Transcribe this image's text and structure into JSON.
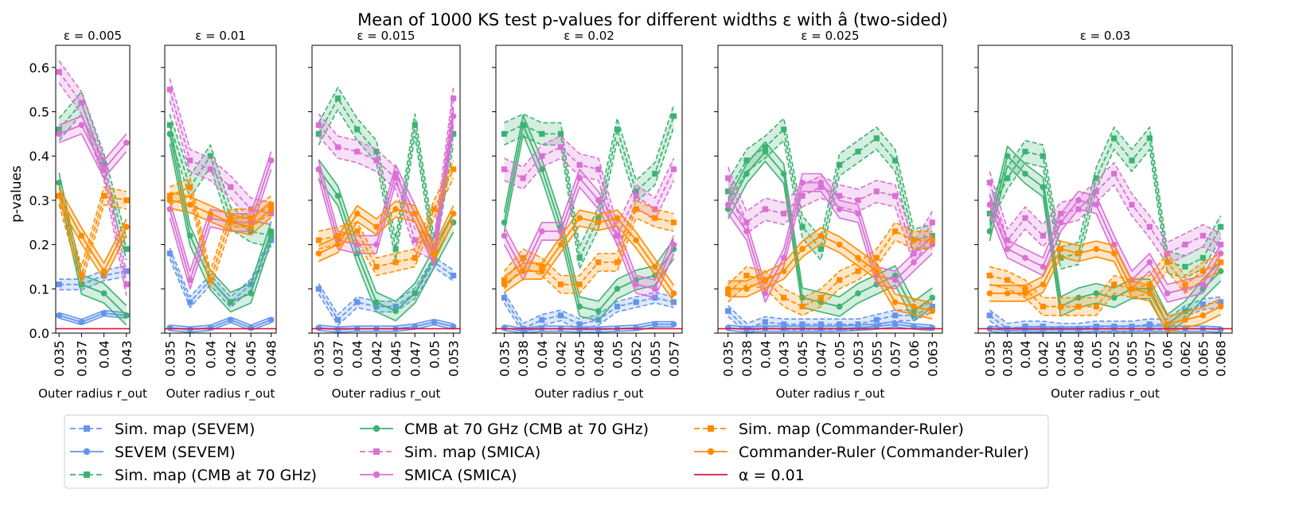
{
  "figure": {
    "title": "Mean of 1000 KS test p-values for different widths ε with â (two-sided)",
    "ylabel": "p-values",
    "xlabel": "Outer radius r_out",
    "yticks": [
      "0.0",
      "0.1",
      "0.2",
      "0.3",
      "0.4",
      "0.5",
      "0.6"
    ]
  },
  "colors": {
    "sevem": "#6495ED",
    "cmb70": "#3CB371",
    "smica": "#DA70D6",
    "commander": "#FF8C00",
    "alpha": "#DC143C"
  },
  "legend": [
    {
      "label": "Sim. map (SEVEM)",
      "color": "#6495ED",
      "style": "dashed",
      "marker": "square"
    },
    {
      "label": "SEVEM (SEVEM)",
      "color": "#6495ED",
      "style": "solid",
      "marker": "circle"
    },
    {
      "label": "Sim. map (CMB at 70 GHz)",
      "color": "#3CB371",
      "style": "dashed",
      "marker": "square"
    },
    {
      "label": "CMB at 70 GHz (CMB at 70 GHz)",
      "color": "#3CB371",
      "style": "solid",
      "marker": "circle"
    },
    {
      "label": "Sim. map (SMICA)",
      "color": "#DA70D6",
      "style": "dashed",
      "marker": "square"
    },
    {
      "label": "SMICA (SMICA)",
      "color": "#DA70D6",
      "style": "solid",
      "marker": "circle"
    },
    {
      "label": "Sim. map (Commander-Ruler)",
      "color": "#FF8C00",
      "style": "dashed",
      "marker": "square"
    },
    {
      "label": "Commander-Ruler (Commander-Ruler)",
      "color": "#FF8C00",
      "style": "solid",
      "marker": "circle"
    },
    {
      "label": "α = 0.01",
      "color": "#DC143C",
      "style": "solid",
      "marker": "none"
    }
  ],
  "chart_data": [
    {
      "type": "line",
      "title": "ε = 0.005",
      "ylim": [
        0,
        0.65
      ],
      "alpha": 0.01,
      "categories": [
        "0.035",
        "0.037",
        "0.04",
        "0.043"
      ],
      "series": [
        {
          "name": "Sim. map (SEVEM)",
          "values": [
            0.11,
            0.11,
            0.13,
            0.14
          ]
        },
        {
          "name": "SEVEM (SEVEM)",
          "values": [
            0.04,
            0.025,
            0.045,
            0.04
          ]
        },
        {
          "name": "Sim. map (CMB at 70 GHz)",
          "values": [
            0.46,
            0.52,
            0.38,
            0.19
          ]
        },
        {
          "name": "CMB at 70 GHz (CMB at 70 GHz)",
          "values": [
            0.34,
            0.11,
            0.09,
            0.04
          ]
        },
        {
          "name": "Sim. map (SMICA)",
          "values": [
            0.59,
            0.52,
            0.37,
            0.11
          ]
        },
        {
          "name": "SMICA (SMICA)",
          "values": [
            0.45,
            0.47,
            0.37,
            0.43
          ]
        },
        {
          "name": "Sim. map (Commander-Ruler)",
          "values": [
            0.31,
            0.13,
            0.31,
            0.3
          ]
        },
        {
          "name": "Commander-Ruler (Commander-Ruler)",
          "values": [
            0.31,
            0.22,
            0.14,
            0.24
          ]
        }
      ]
    },
    {
      "type": "line",
      "title": "ε = 0.01",
      "ylim": [
        0,
        0.65
      ],
      "alpha": 0.01,
      "categories": [
        "0.035",
        "0.037",
        "0.04",
        "0.042",
        "0.045",
        "0.048"
      ],
      "series": [
        {
          "name": "Sim. map (SEVEM)",
          "values": [
            0.18,
            0.07,
            0.12,
            0.07,
            0.11,
            0.21
          ]
        },
        {
          "name": "SEVEM (SEVEM)",
          "values": [
            0.012,
            0.008,
            0.012,
            0.03,
            0.012,
            0.03
          ]
        },
        {
          "name": "Sim. map (CMB at 70 GHz)",
          "values": [
            0.47,
            0.33,
            0.4,
            0.26,
            0.23,
            0.22
          ]
        },
        {
          "name": "CMB at 70 GHz (CMB at 70 GHz)",
          "values": [
            0.45,
            0.22,
            0.12,
            0.07,
            0.09,
            0.23
          ]
        },
        {
          "name": "Sim. map (SMICA)",
          "values": [
            0.55,
            0.39,
            0.37,
            0.33,
            0.28,
            0.27
          ]
        },
        {
          "name": "SMICA (SMICA)",
          "values": [
            0.28,
            0.12,
            0.26,
            0.25,
            0.25,
            0.39
          ]
        },
        {
          "name": "Sim. map (Commander-Ruler)",
          "values": [
            0.31,
            0.33,
            0.12,
            0.26,
            0.26,
            0.29
          ]
        },
        {
          "name": "Commander-Ruler (Commander-Ruler)",
          "values": [
            0.3,
            0.29,
            0.27,
            0.25,
            0.24,
            0.28
          ]
        }
      ]
    },
    {
      "type": "line",
      "title": "ε = 0.015",
      "ylim": [
        0,
        0.65
      ],
      "alpha": 0.01,
      "categories": [
        "0.035",
        "0.037",
        "0.04",
        "0.042",
        "0.045",
        "0.047",
        "0.05",
        "0.053"
      ],
      "series": [
        {
          "name": "Sim. map (SEVEM)",
          "values": [
            0.1,
            0.03,
            0.07,
            0.06,
            0.06,
            0.09,
            0.16,
            0.13
          ]
        },
        {
          "name": "SEVEM (SEVEM)",
          "values": [
            0.012,
            0.008,
            0.01,
            0.01,
            0.01,
            0.015,
            0.025,
            0.015
          ]
        },
        {
          "name": "Sim. map (CMB at 70 GHz)",
          "values": [
            0.45,
            0.53,
            0.46,
            0.41,
            0.19,
            0.47,
            0.19,
            0.45
          ]
        },
        {
          "name": "CMB at 70 GHz (CMB at 70 GHz)",
          "values": [
            0.37,
            0.31,
            0.18,
            0.07,
            0.05,
            0.09,
            0.17,
            0.25
          ]
        },
        {
          "name": "Sim. map (SMICA)",
          "values": [
            0.47,
            0.42,
            0.41,
            0.39,
            0.35,
            0.21,
            0.19,
            0.53
          ]
        },
        {
          "name": "SMICA (SMICA)",
          "values": [
            0.37,
            0.21,
            0.2,
            0.2,
            0.36,
            0.27,
            0.17,
            0.49
          ]
        },
        {
          "name": "Sim. map (Commander-Ruler)",
          "values": [
            0.21,
            0.22,
            0.23,
            0.15,
            0.16,
            0.17,
            0.28,
            0.37
          ]
        },
        {
          "name": "Commander-Ruler (Commander-Ruler)",
          "values": [
            0.18,
            0.2,
            0.27,
            0.24,
            0.28,
            0.27,
            0.18,
            0.27
          ]
        }
      ]
    },
    {
      "type": "line",
      "title": "ε = 0.02",
      "ylim": [
        0,
        0.65
      ],
      "alpha": 0.01,
      "categories": [
        "0.035",
        "0.038",
        "0.04",
        "0.042",
        "0.045",
        "0.048",
        "0.05",
        "0.052",
        "0.055",
        "0.057"
      ],
      "series": [
        {
          "name": "Sim. map (SEVEM)",
          "values": [
            0.08,
            0.01,
            0.03,
            0.04,
            0.02,
            0.03,
            0.06,
            0.07,
            0.08,
            0.07
          ]
        },
        {
          "name": "SEVEM (SEVEM)",
          "values": [
            0.012,
            0.005,
            0.01,
            0.01,
            0.008,
            0.008,
            0.01,
            0.012,
            0.02,
            0.02
          ]
        },
        {
          "name": "Sim. map (CMB at 70 GHz)",
          "values": [
            0.45,
            0.47,
            0.45,
            0.45,
            0.17,
            0.26,
            0.46,
            0.32,
            0.36,
            0.49
          ]
        },
        {
          "name": "CMB at 70 GHz (CMB at 70 GHz)",
          "values": [
            0.25,
            0.47,
            0.37,
            0.24,
            0.06,
            0.05,
            0.1,
            0.12,
            0.13,
            0.19
          ]
        },
        {
          "name": "Sim. map (SMICA)",
          "values": [
            0.37,
            0.35,
            0.4,
            0.42,
            0.38,
            0.37,
            0.22,
            0.31,
            0.28,
            0.37
          ]
        },
        {
          "name": "SMICA (SMICA)",
          "values": [
            0.22,
            0.14,
            0.23,
            0.23,
            0.35,
            0.3,
            0.22,
            0.11,
            0.1,
            0.2
          ]
        },
        {
          "name": "Sim. map (Commander-Ruler)",
          "values": [
            0.12,
            0.17,
            0.15,
            0.11,
            0.11,
            0.16,
            0.16,
            0.28,
            0.26,
            0.25
          ]
        },
        {
          "name": "Commander-Ruler (Commander-Ruler)",
          "values": [
            0.11,
            0.14,
            0.14,
            0.2,
            0.26,
            0.25,
            0.26,
            0.21,
            0.15,
            0.09
          ]
        }
      ]
    },
    {
      "type": "line",
      "title": "ε = 0.025",
      "ylim": [
        0,
        0.65
      ],
      "alpha": 0.01,
      "categories": [
        "0.035",
        "0.038",
        "0.04",
        "0.043",
        "0.045",
        "0.047",
        "0.05",
        "0.053",
        "0.055",
        "0.057",
        "0.06",
        "0.063"
      ],
      "series": [
        {
          "name": "Sim. map (SEVEM)",
          "values": [
            0.05,
            0.01,
            0.025,
            0.02,
            0.02,
            0.02,
            0.02,
            0.02,
            0.03,
            0.04,
            0.04,
            0.06
          ]
        },
        {
          "name": "SEVEM (SEVEM)",
          "values": [
            0.012,
            0.008,
            0.01,
            0.01,
            0.01,
            0.01,
            0.01,
            0.012,
            0.015,
            0.02,
            0.015,
            0.012
          ]
        },
        {
          "name": "Sim. map (CMB at 70 GHz)",
          "values": [
            0.32,
            0.39,
            0.42,
            0.46,
            0.24,
            0.19,
            0.38,
            0.41,
            0.44,
            0.39,
            0.21,
            0.22
          ]
        },
        {
          "name": "CMB at 70 GHz (CMB at 70 GHz)",
          "values": [
            0.28,
            0.36,
            0.41,
            0.36,
            0.08,
            0.07,
            0.06,
            0.09,
            0.11,
            0.13,
            0.05,
            0.08
          ]
        },
        {
          "name": "Sim. map (SMICA)",
          "values": [
            0.35,
            0.25,
            0.28,
            0.27,
            0.31,
            0.33,
            0.31,
            0.3,
            0.32,
            0.31,
            0.18,
            0.25
          ]
        },
        {
          "name": "SMICA (SMICA)",
          "values": [
            0.29,
            0.23,
            0.09,
            0.17,
            0.34,
            0.34,
            0.28,
            0.27,
            0.13,
            0.12,
            0.16,
            0.2
          ]
        },
        {
          "name": "Sim. map (Commander-Ruler)",
          "values": [
            0.09,
            0.13,
            0.12,
            0.08,
            0.06,
            0.08,
            0.12,
            0.14,
            0.17,
            0.23,
            0.21,
            0.21
          ]
        },
        {
          "name": "Commander-Ruler (Commander-Ruler)",
          "values": [
            0.1,
            0.1,
            0.12,
            0.14,
            0.19,
            0.22,
            0.2,
            0.17,
            0.14,
            0.07,
            0.06,
            0.05
          ]
        }
      ]
    },
    {
      "type": "line",
      "title": "ε = 0.03",
      "ylim": [
        0,
        0.65
      ],
      "alpha": 0.01,
      "categories": [
        "0.035",
        "0.038",
        "0.04",
        "0.042",
        "0.045",
        "0.048",
        "0.05",
        "0.052",
        "0.055",
        "0.057",
        "0.06",
        "0.062",
        "0.065",
        "0.068"
      ],
      "series": [
        {
          "name": "Sim. map (SEVEM)",
          "values": [
            0.04,
            0.01,
            0.015,
            0.015,
            0.01,
            0.01,
            0.015,
            0.015,
            0.015,
            0.02,
            0.02,
            0.05,
            0.065,
            0.07
          ]
        },
        {
          "name": "SEVEM (SEVEM)",
          "values": [
            0.01,
            0.005,
            0.008,
            0.008,
            0.008,
            0.008,
            0.01,
            0.01,
            0.01,
            0.01,
            0.01,
            0.01,
            0.01,
            0.008
          ]
        },
        {
          "name": "Sim. map (CMB at 70 GHz)",
          "values": [
            0.27,
            0.35,
            0.41,
            0.4,
            0.17,
            0.18,
            0.35,
            0.44,
            0.39,
            0.44,
            0.16,
            0.15,
            0.17,
            0.24
          ]
        },
        {
          "name": "CMB at 70 GHz (CMB at 70 GHz)",
          "values": [
            0.23,
            0.4,
            0.36,
            0.33,
            0.06,
            0.08,
            0.09,
            0.08,
            0.1,
            0.1,
            0.02,
            0.05,
            0.1,
            0.14
          ]
        },
        {
          "name": "Sim. map (SMICA)",
          "values": [
            0.34,
            0.21,
            0.26,
            0.22,
            0.27,
            0.28,
            0.32,
            0.36,
            0.29,
            0.24,
            0.18,
            0.2,
            0.22,
            0.2
          ]
        },
        {
          "name": "SMICA (SMICA)",
          "values": [
            0.29,
            0.19,
            0.17,
            0.15,
            0.25,
            0.3,
            0.29,
            0.2,
            0.12,
            0.16,
            0.09,
            0.1,
            0.11,
            0.18
          ]
        },
        {
          "name": "Sim. map (Commander-Ruler)",
          "values": [
            0.13,
            0.12,
            0.1,
            0.06,
            0.06,
            0.06,
            0.06,
            0.11,
            0.1,
            0.11,
            0.16,
            0.11,
            0.14,
            0.16
          ]
        },
        {
          "name": "Commander-Ruler (Commander-Ruler)",
          "values": [
            0.09,
            0.09,
            0.09,
            0.11,
            0.19,
            0.18,
            0.19,
            0.18,
            0.1,
            0.09,
            0.02,
            0.03,
            0.04,
            0.06
          ]
        }
      ]
    }
  ]
}
